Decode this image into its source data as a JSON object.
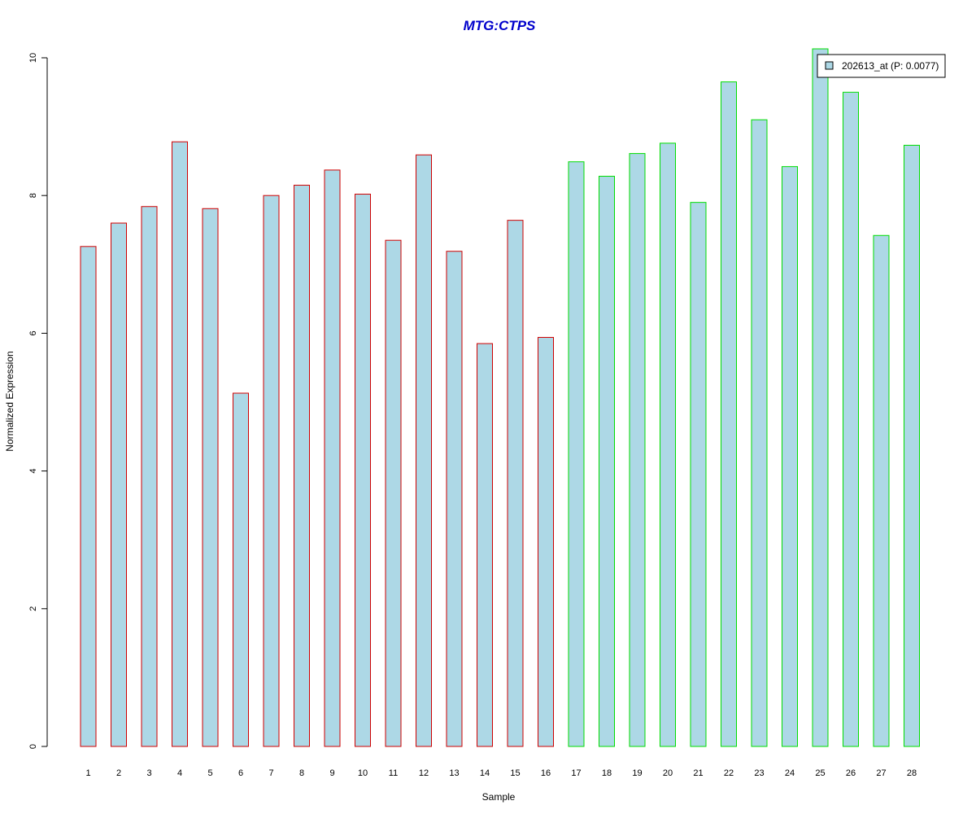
{
  "chart_data": {
    "type": "bar",
    "title": "MTG:CTPS",
    "xlabel": "Sample",
    "ylabel": "Normalized Expression",
    "categories": [
      "1",
      "2",
      "3",
      "4",
      "5",
      "6",
      "7",
      "8",
      "9",
      "10",
      "11",
      "12",
      "13",
      "14",
      "15",
      "16",
      "17",
      "18",
      "19",
      "20",
      "21",
      "22",
      "23",
      "24",
      "25",
      "26",
      "27",
      "28"
    ],
    "series": [
      {
        "name": "202613_at (P: 0.0077)",
        "values": [
          7.26,
          7.6,
          7.84,
          8.78,
          7.81,
          5.13,
          8.0,
          8.15,
          8.37,
          8.02,
          7.35,
          8.59,
          7.19,
          5.85,
          7.64,
          5.94,
          8.49,
          8.28,
          8.61,
          8.76,
          7.9,
          9.65,
          9.1,
          8.42,
          10.13,
          9.5,
          7.42,
          8.73
        ]
      }
    ],
    "group_border_colors": [
      "#d00000",
      "#d00000",
      "#d00000",
      "#d00000",
      "#d00000",
      "#d00000",
      "#d00000",
      "#d00000",
      "#d00000",
      "#d00000",
      "#d00000",
      "#d00000",
      "#d00000",
      "#d00000",
      "#d00000",
      "#d00000",
      "#00dd00",
      "#00dd00",
      "#00dd00",
      "#00dd00",
      "#00dd00",
      "#00dd00",
      "#00dd00",
      "#00dd00",
      "#00dd00",
      "#00dd00",
      "#00dd00",
      "#00dd00"
    ],
    "y_ticks": [
      "0",
      "2",
      "4",
      "6",
      "8",
      "10"
    ],
    "ylim": [
      0,
      10
    ],
    "grid": false,
    "legend_position": "top-right",
    "colors": {
      "bar_fill": "#add8e6",
      "title": "#0000cc",
      "axis": "#000000"
    }
  }
}
